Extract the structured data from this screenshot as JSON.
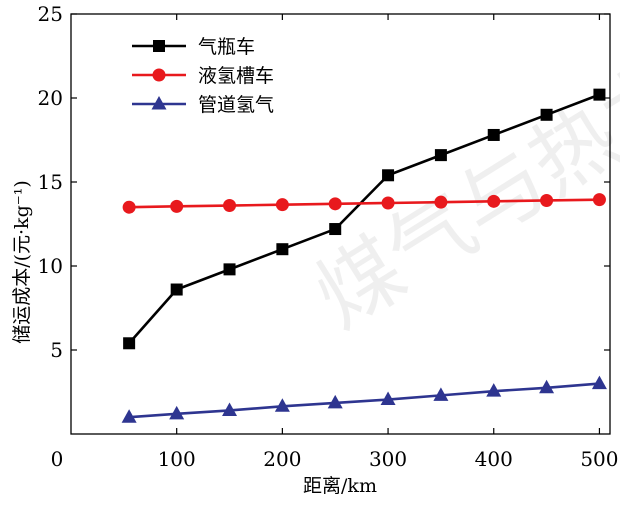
{
  "chart_data": {
    "type": "line",
    "title": "",
    "xlabel": "距离/km",
    "ylabel": "储运成本/(元·kg⁻¹)",
    "x": [
      55,
      100,
      150,
      200,
      250,
      300,
      350,
      400,
      450,
      500
    ],
    "xlim": [
      0,
      510
    ],
    "ylim": [
      0,
      25
    ],
    "xticks": [
      "0",
      "100",
      "200",
      "300",
      "400",
      "500"
    ],
    "yticks": [
      "5",
      "10",
      "15",
      "20",
      "25"
    ],
    "grid": false,
    "legend_position": "top-left",
    "series": [
      {
        "name": "气瓶车",
        "color": "#000000",
        "marker": "square",
        "values": [
          5.4,
          8.6,
          9.8,
          11.0,
          12.2,
          15.4,
          16.6,
          17.8,
          19.0,
          20.2
        ]
      },
      {
        "name": "液氢槽车",
        "color": "#e8191d",
        "marker": "circle",
        "values": [
          13.5,
          13.55,
          13.6,
          13.65,
          13.7,
          13.75,
          13.8,
          13.85,
          13.9,
          13.95
        ]
      },
      {
        "name": "管道氢气",
        "color": "#2e3590",
        "marker": "triangle",
        "values": [
          1.0,
          1.2,
          1.4,
          1.65,
          1.85,
          2.05,
          2.3,
          2.55,
          2.75,
          3.0
        ]
      }
    ]
  },
  "watermark": {
    "text": "煤气与热力"
  }
}
